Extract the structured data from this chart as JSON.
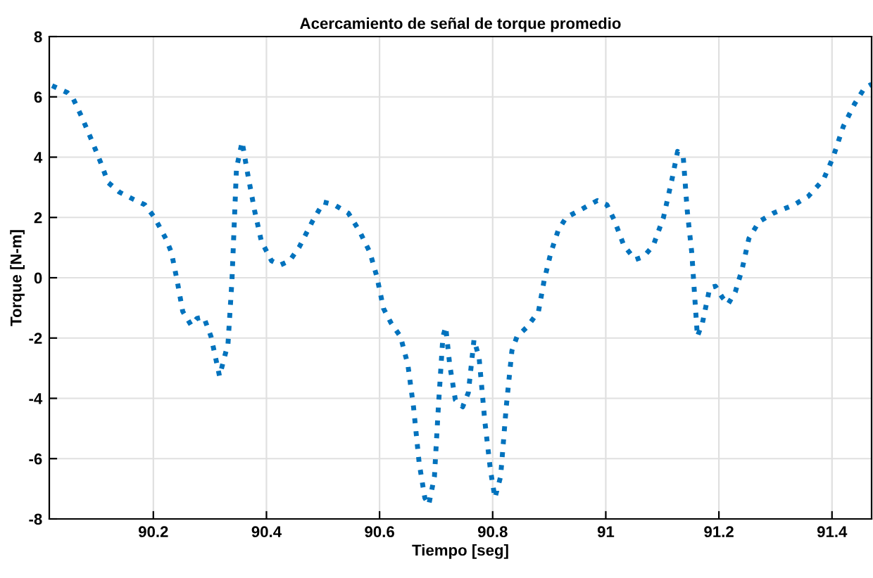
{
  "chart_data": {
    "type": "line",
    "title": "Acercamiento de señal de torque promedio",
    "xlabel": "Tiempo [seg]",
    "ylabel": "Torque [N-m]",
    "xlim": [
      90.016,
      91.47
    ],
    "ylim": [
      -8,
      8
    ],
    "xticks": [
      90.2,
      90.4,
      90.6,
      90.8,
      91,
      91.2,
      91.4
    ],
    "yticks": [
      -8,
      -6,
      -4,
      -2,
      0,
      2,
      4,
      6,
      8
    ],
    "grid": true,
    "line_style": "dotted",
    "marker": "none",
    "series": [
      {
        "color": "#0072bd",
        "x": [
          90.021,
          90.048,
          90.058,
          90.073,
          90.091,
          90.108,
          90.12,
          90.14,
          90.165,
          90.185,
          90.202,
          90.222,
          90.232,
          90.242,
          90.252,
          90.267,
          90.277,
          90.289,
          90.302,
          90.317,
          90.332,
          90.339,
          90.347,
          90.357,
          90.366,
          90.379,
          90.391,
          90.409,
          90.424,
          90.441,
          90.458,
          90.481,
          90.501,
          90.52,
          90.545,
          90.565,
          90.583,
          90.595,
          90.607,
          90.62,
          90.637,
          90.65,
          90.66,
          90.67,
          90.68,
          90.687,
          90.697,
          90.704,
          90.712,
          90.717,
          90.724,
          90.734,
          90.747,
          90.757,
          90.767,
          90.776,
          90.786,
          90.796,
          90.804,
          90.814,
          90.824,
          90.834,
          90.843,
          90.861,
          90.881,
          90.891,
          90.903,
          90.916,
          90.93,
          90.958,
          90.985,
          91.002,
          91.015,
          91.032,
          91.052,
          91.067,
          91.084,
          91.102,
          91.117,
          91.127,
          91.137,
          91.144,
          91.152,
          91.157,
          91.162,
          91.171,
          91.184,
          91.194,
          91.206,
          91.216,
          91.229,
          91.241,
          91.253,
          91.271,
          91.296,
          91.333,
          91.358,
          91.385,
          91.402,
          91.42,
          91.44,
          91.457,
          91.47
        ],
        "values": [
          6.37,
          6.14,
          5.95,
          5.35,
          4.56,
          3.77,
          3.16,
          2.84,
          2.6,
          2.42,
          2.0,
          1.3,
          0.84,
          -0.09,
          -1.12,
          -1.58,
          -1.35,
          -1.3,
          -1.95,
          -3.26,
          -2.19,
          -0.09,
          3.63,
          4.51,
          3.53,
          2.23,
          1.21,
          0.56,
          0.42,
          0.56,
          1.02,
          1.86,
          2.51,
          2.42,
          2.14,
          1.53,
          0.84,
          0.05,
          -1.02,
          -1.49,
          -1.95,
          -2.88,
          -4.28,
          -6.14,
          -7.3,
          -7.53,
          -6.6,
          -4.28,
          -1.95,
          -1.63,
          -2.88,
          -4.05,
          -4.28,
          -3.81,
          -2.05,
          -2.65,
          -4.74,
          -6.37,
          -7.3,
          -6.6,
          -4.28,
          -2.42,
          -1.95,
          -1.63,
          -1.12,
          -0.09,
          0.84,
          1.58,
          2.0,
          2.28,
          2.56,
          2.42,
          1.91,
          1.07,
          0.6,
          0.7,
          1.07,
          2.0,
          3.26,
          4.19,
          4.0,
          2.23,
          0.84,
          -0.56,
          -1.95,
          -1.49,
          -0.33,
          -0.28,
          -0.65,
          -0.88,
          -0.47,
          0.28,
          1.3,
          1.86,
          2.14,
          2.42,
          2.7,
          3.26,
          4.0,
          5.02,
          5.77,
          6.28,
          6.42
        ]
      }
    ]
  }
}
